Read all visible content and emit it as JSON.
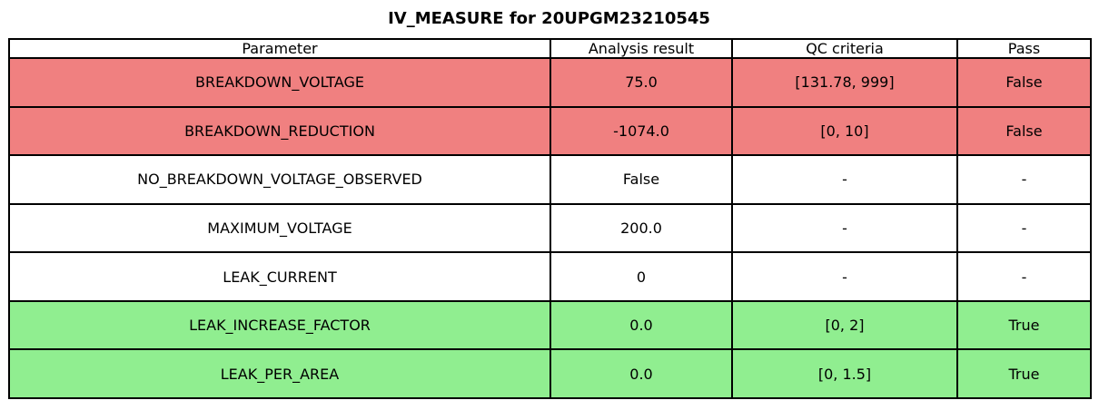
{
  "title": "IV_MEASURE for 20UPGM23210545",
  "colors": {
    "fail_row": "#f08080",
    "pass_row": "#90ee90",
    "neutral_row": "#ffffff",
    "border": "#000000",
    "text": "#000000",
    "background": "#ffffff"
  },
  "chart_data": {
    "type": "table",
    "title": "IV_MEASURE for 20UPGM23210545",
    "columns": [
      "Parameter",
      "Analysis result",
      "QC criteria",
      "Pass"
    ],
    "rows": [
      {
        "parameter": "BREAKDOWN_VOLTAGE",
        "analysis_result": "75.0",
        "qc_criteria": "[131.78, 999]",
        "pass": "False",
        "status": "fail"
      },
      {
        "parameter": "BREAKDOWN_REDUCTION",
        "analysis_result": "-1074.0",
        "qc_criteria": "[0, 10]",
        "pass": "False",
        "status": "fail"
      },
      {
        "parameter": "NO_BREAKDOWN_VOLTAGE_OBSERVED",
        "analysis_result": "False",
        "qc_criteria": "-",
        "pass": "-",
        "status": "neutral"
      },
      {
        "parameter": "MAXIMUM_VOLTAGE",
        "analysis_result": "200.0",
        "qc_criteria": "-",
        "pass": "-",
        "status": "neutral"
      },
      {
        "parameter": "LEAK_CURRENT",
        "analysis_result": "0",
        "qc_criteria": "-",
        "pass": "-",
        "status": "neutral"
      },
      {
        "parameter": "LEAK_INCREASE_FACTOR",
        "analysis_result": "0.0",
        "qc_criteria": "[0, 2]",
        "pass": "True",
        "status": "pass"
      },
      {
        "parameter": "LEAK_PER_AREA",
        "analysis_result": "0.0",
        "qc_criteria": "[0, 1.5]",
        "pass": "True",
        "status": "pass"
      }
    ]
  }
}
